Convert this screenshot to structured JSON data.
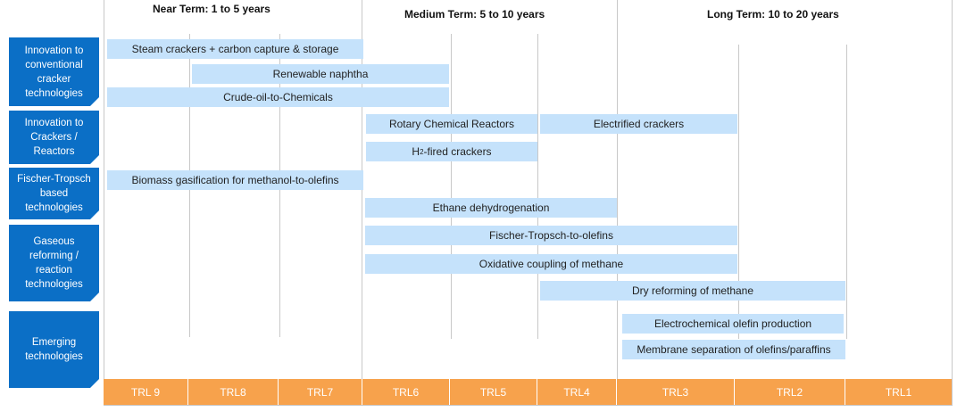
{
  "terms": [
    {
      "label": "Near Term: 1 to 5 years"
    },
    {
      "label": "Medium Term: 5 to 10 years"
    },
    {
      "label": "Long Term: 10 to 20 years"
    }
  ],
  "categories": [
    {
      "label": "Innovation to conventional cracker technologies"
    },
    {
      "label": "Innovation to Crackers / Reactors"
    },
    {
      "label": "Fischer-Tropsch based technologies"
    },
    {
      "label": "Gaseous reforming / reaction technologies"
    },
    {
      "label": "Emerging technologies"
    }
  ],
  "bars": [
    {
      "label": "Steam crackers + carbon capture & storage"
    },
    {
      "label": "Renewable naphtha"
    },
    {
      "label": "Crude-oil-to-Chemicals"
    },
    {
      "label": "Rotary Chemical Reactors"
    },
    {
      "label": "Electrified crackers"
    },
    {
      "label_pre": "H",
      "label_sub": "2",
      "label_post": "-fired crackers"
    },
    {
      "label": "Biomass gasification for methanol-to-olefins"
    },
    {
      "label": "Ethane dehydrogenation"
    },
    {
      "label": "Fischer-Tropsch-to-olefins"
    },
    {
      "label": "Oxidative coupling of methane"
    },
    {
      "label": "Dry reforming of methane"
    },
    {
      "label": "Electrochemical olefin production"
    },
    {
      "label": "Membrane separation of olefins/paraffins"
    }
  ],
  "trl": [
    {
      "label": "TRL 9"
    },
    {
      "label": "TRL8"
    },
    {
      "label": "TRL7"
    },
    {
      "label": "TRL6"
    },
    {
      "label": "TRL5"
    },
    {
      "label": "TRL4"
    },
    {
      "label": "TRL3"
    },
    {
      "label": "TRL2"
    },
    {
      "label": "TRL1"
    }
  ],
  "colors": {
    "category": "#0b6fc6",
    "bar": "#c5e2fb",
    "trl": "#f7a24c"
  }
}
